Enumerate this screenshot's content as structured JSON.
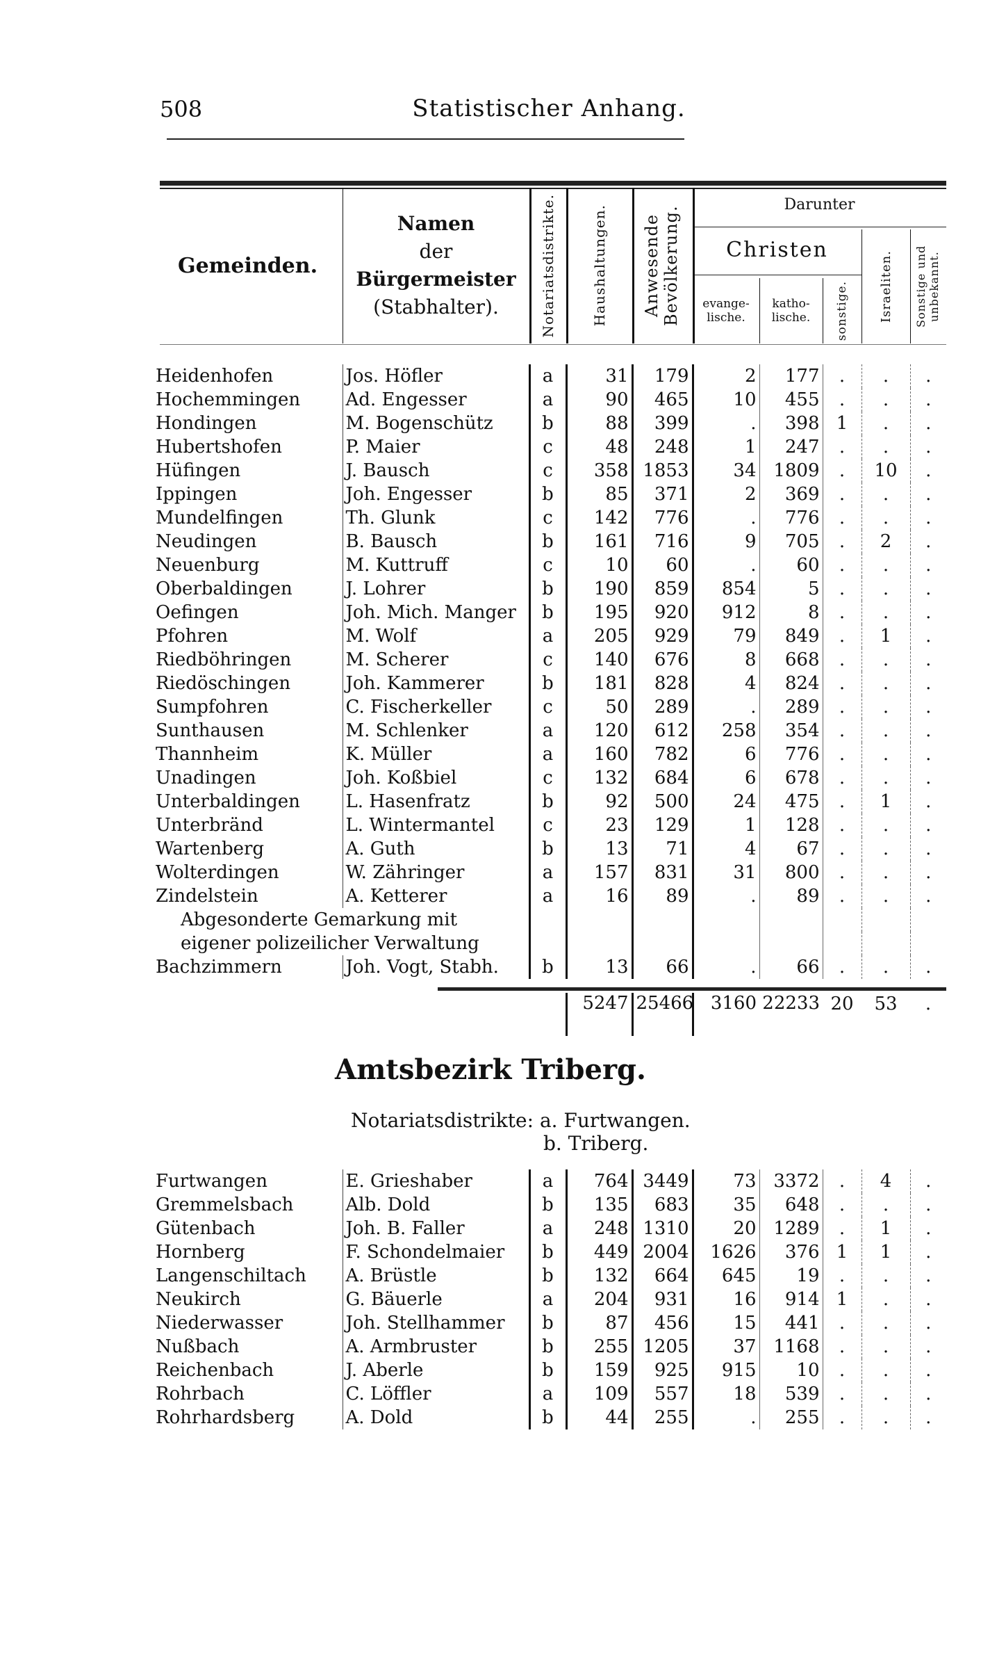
{
  "page": {
    "number": "508",
    "running_head": "Statistischer Anhang."
  },
  "header": {
    "gemeinden": "Gemeinden.",
    "namen": [
      "Namen",
      "der",
      "Bürgermeister",
      "(Stabhalter)."
    ],
    "notariat": "Notariatsdistrikte.",
    "haushaltungen": "Haushaltungen.",
    "bevoelkerung": "Anwesende Bevölkerung.",
    "darunter": "Darunter",
    "christen": "Christen",
    "evangelische": "evange-lische.",
    "katholische": "katho-lische.",
    "sonstige": "sonstige.",
    "israeliten": "Israeliten.",
    "unbekannt": "Sonstige und unbekannt."
  },
  "table1": {
    "rows": [
      [
        "Heidenhofen",
        "Jos. Höfler",
        "a",
        "31",
        "179",
        "2",
        "177",
        ".",
        ".",
        "."
      ],
      [
        "Hochemmingen",
        "Ad. Engesser",
        "a",
        "90",
        "465",
        "10",
        "455",
        ".",
        ".",
        "."
      ],
      [
        "Hondingen",
        "M. Bogenschütz",
        "b",
        "88",
        "399",
        ".",
        "398",
        "1",
        ".",
        "."
      ],
      [
        "Hubertshofen",
        "P. Maier",
        "c",
        "48",
        "248",
        "1",
        "247",
        ".",
        ".",
        "."
      ],
      [
        "Hüfingen",
        "J. Bausch",
        "c",
        "358",
        "1853",
        "34",
        "1809",
        ".",
        "10",
        "."
      ],
      [
        "Ippingen",
        "Joh. Engesser",
        "b",
        "85",
        "371",
        "2",
        "369",
        ".",
        ".",
        "."
      ],
      [
        "Mundelfingen",
        "Th. Glunk",
        "c",
        "142",
        "776",
        ".",
        "776",
        ".",
        ".",
        "."
      ],
      [
        "Neudingen",
        "B. Bausch",
        "b",
        "161",
        "716",
        "9",
        "705",
        ".",
        "2",
        "."
      ],
      [
        "Neuenburg",
        "M. Kuttruff",
        "c",
        "10",
        "60",
        ".",
        "60",
        ".",
        ".",
        "."
      ],
      [
        "Oberbaldingen",
        "J. Lohrer",
        "b",
        "190",
        "859",
        "854",
        "5",
        ".",
        ".",
        "."
      ],
      [
        "Oefingen",
        "Joh. Mich. Manger",
        "b",
        "195",
        "920",
        "912",
        "8",
        ".",
        ".",
        "."
      ],
      [
        "Pfohren",
        "M. Wolf",
        "a",
        "205",
        "929",
        "79",
        "849",
        ".",
        "1",
        "."
      ],
      [
        "Riedböhringen",
        "M. Scherer",
        "c",
        "140",
        "676",
        "8",
        "668",
        ".",
        ".",
        "."
      ],
      [
        "Riedöschingen",
        "Joh. Kammerer",
        "b",
        "181",
        "828",
        "4",
        "824",
        ".",
        ".",
        "."
      ],
      [
        "Sumpfohren",
        "C. Fischerkeller",
        "c",
        "50",
        "289",
        ".",
        "289",
        ".",
        ".",
        "."
      ],
      [
        "Sunthausen",
        "M. Schlenker",
        "a",
        "120",
        "612",
        "258",
        "354",
        ".",
        ".",
        "."
      ],
      [
        "Thannheim",
        "K. Müller",
        "a",
        "160",
        "782",
        "6",
        "776",
        ".",
        ".",
        "."
      ],
      [
        "Unadingen",
        "Joh. Koßbiel",
        "c",
        "132",
        "684",
        "6",
        "678",
        ".",
        ".",
        "."
      ],
      [
        "Unterbaldingen",
        "L. Hasenfratz",
        "b",
        "92",
        "500",
        "24",
        "475",
        ".",
        "1",
        "."
      ],
      [
        "Unterbränd",
        "L. Wintermantel",
        "c",
        "23",
        "129",
        "1",
        "128",
        ".",
        ".",
        "."
      ],
      [
        "Wartenberg",
        "A. Guth",
        "b",
        "13",
        "71",
        "4",
        "67",
        ".",
        ".",
        "."
      ],
      [
        "Wolterdingen",
        "W. Zähringer",
        "a",
        "157",
        "831",
        "31",
        "800",
        ".",
        ".",
        "."
      ],
      [
        "Zindelstein",
        "A. Ketterer",
        "a",
        "16",
        "89",
        ".",
        "89",
        ".",
        ".",
        "."
      ]
    ],
    "note": [
      "Abgesonderte Gemarkung mit",
      "eigener polizeilicher Verwaltung"
    ],
    "extra_rows": [
      [
        "Bachzimmern",
        "Joh. Vogt, Stabh.",
        "b",
        "13",
        "66",
        ".",
        "66",
        ".",
        ".",
        "."
      ]
    ],
    "totals": [
      "5247",
      "25466",
      "3160",
      "22233",
      "20",
      "53",
      "."
    ]
  },
  "section": {
    "title": "Amtsbezirk Triberg.",
    "subtitle_label": "Notariatsdistrikte:",
    "districts": [
      "a. Furtwangen.",
      "b. Triberg."
    ]
  },
  "table2": {
    "rows": [
      [
        "Furtwangen",
        "E. Grieshaber",
        "a",
        "764",
        "3449",
        "73",
        "3372",
        ".",
        "4",
        "."
      ],
      [
        "Gremmelsbach",
        "Alb. Dold",
        "b",
        "135",
        "683",
        "35",
        "648",
        ".",
        ".",
        "."
      ],
      [
        "Gütenbach",
        "Joh. B. Faller",
        "a",
        "248",
        "1310",
        "20",
        "1289",
        ".",
        "1",
        "."
      ],
      [
        "Hornberg",
        "F. Schondelmaier",
        "b",
        "449",
        "2004",
        "1626",
        "376",
        "1",
        "1",
        "."
      ],
      [
        "Langenschiltach",
        "A. Brüstle",
        "b",
        "132",
        "664",
        "645",
        "19",
        ".",
        ".",
        "."
      ],
      [
        "Neukirch",
        "G. Bäuerle",
        "a",
        "204",
        "931",
        "16",
        "914",
        "1",
        ".",
        "."
      ],
      [
        "Niederwasser",
        "Joh. Stellhammer",
        "b",
        "87",
        "456",
        "15",
        "441",
        ".",
        ".",
        "."
      ],
      [
        "Nußbach",
        "A. Armbruster",
        "b",
        "255",
        "1205",
        "37",
        "1168",
        ".",
        ".",
        "."
      ],
      [
        "Reichenbach",
        "J. Aberle",
        "b",
        "159",
        "925",
        "915",
        "10",
        ".",
        ".",
        "."
      ],
      [
        "Rohrbach",
        "C. Löffler",
        "a",
        "109",
        "557",
        "18",
        "539",
        ".",
        ".",
        "."
      ],
      [
        "Rohrhardsberg",
        "A. Dold",
        "b",
        "44",
        "255",
        ".",
        "255",
        ".",
        ".",
        "."
      ]
    ]
  }
}
